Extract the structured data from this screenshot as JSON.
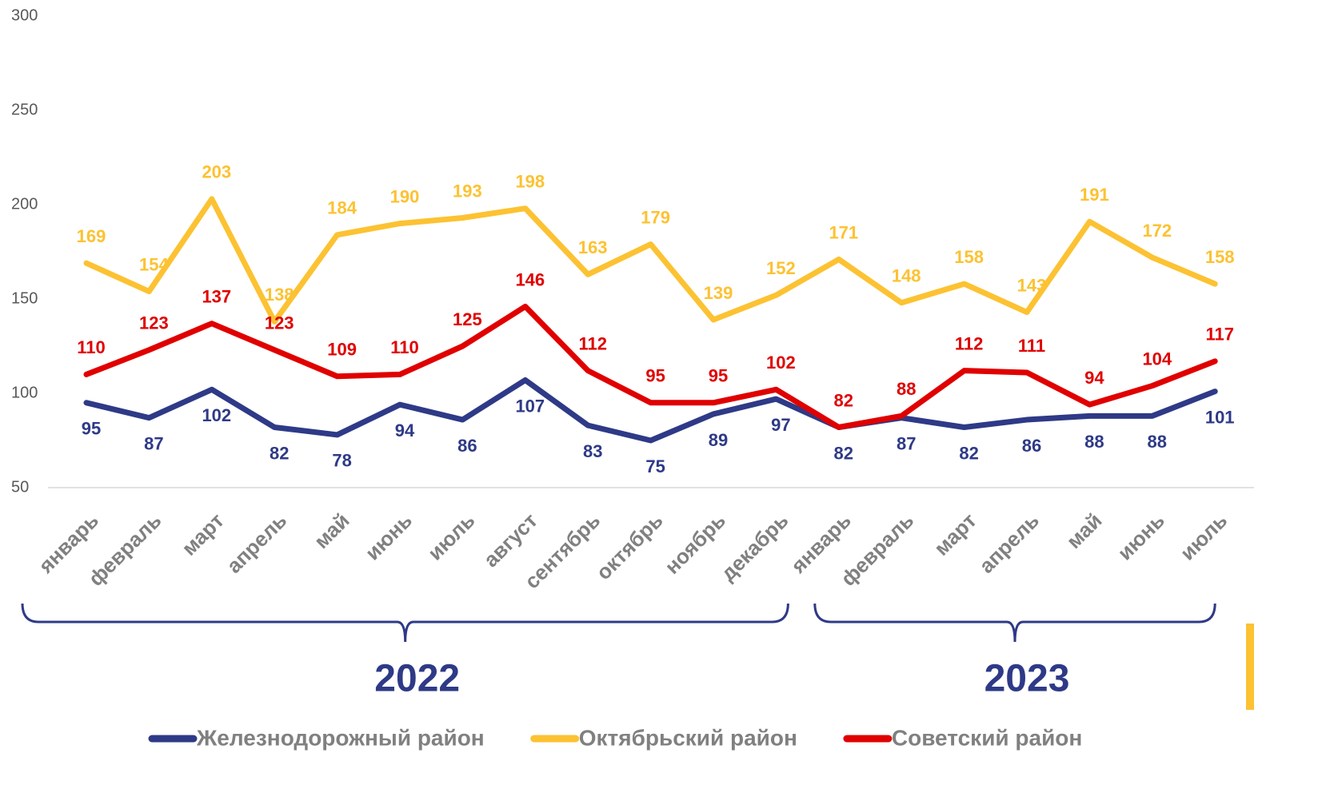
{
  "chart_data": {
    "type": "line",
    "categories": [
      "январь",
      "февраль",
      "март",
      "апрель",
      "май",
      "июнь",
      "июль",
      "август",
      "сентябрь",
      "октябрь",
      "ноябрь",
      "декабрь",
      "январь",
      "февраль",
      "март",
      "апрель",
      "май",
      "июнь",
      "июль"
    ],
    "groups": [
      "2022",
      "2023"
    ],
    "series": [
      {
        "name": "Железнодорожный район",
        "color": "#2e3a87",
        "values": [
          95,
          87,
          102,
          82,
          78,
          94,
          86,
          107,
          83,
          75,
          89,
          97,
          82,
          87,
          82,
          86,
          88,
          88,
          101
        ]
      },
      {
        "name": "Октябрьский район",
        "color": "#fcc232",
        "values": [
          169,
          154,
          203,
          138,
          184,
          190,
          193,
          198,
          163,
          179,
          139,
          152,
          171,
          148,
          158,
          143,
          191,
          172,
          158
        ]
      },
      {
        "name": "Советский район",
        "color": "#e00000",
        "values": [
          110,
          123,
          137,
          123,
          109,
          110,
          125,
          146,
          112,
          95,
          95,
          102,
          82,
          88,
          112,
          111,
          94,
          104,
          117
        ]
      }
    ],
    "ylim": [
      50,
      300
    ],
    "yticks": [
      50,
      100,
      150,
      200,
      250,
      300
    ],
    "grid": false
  }
}
